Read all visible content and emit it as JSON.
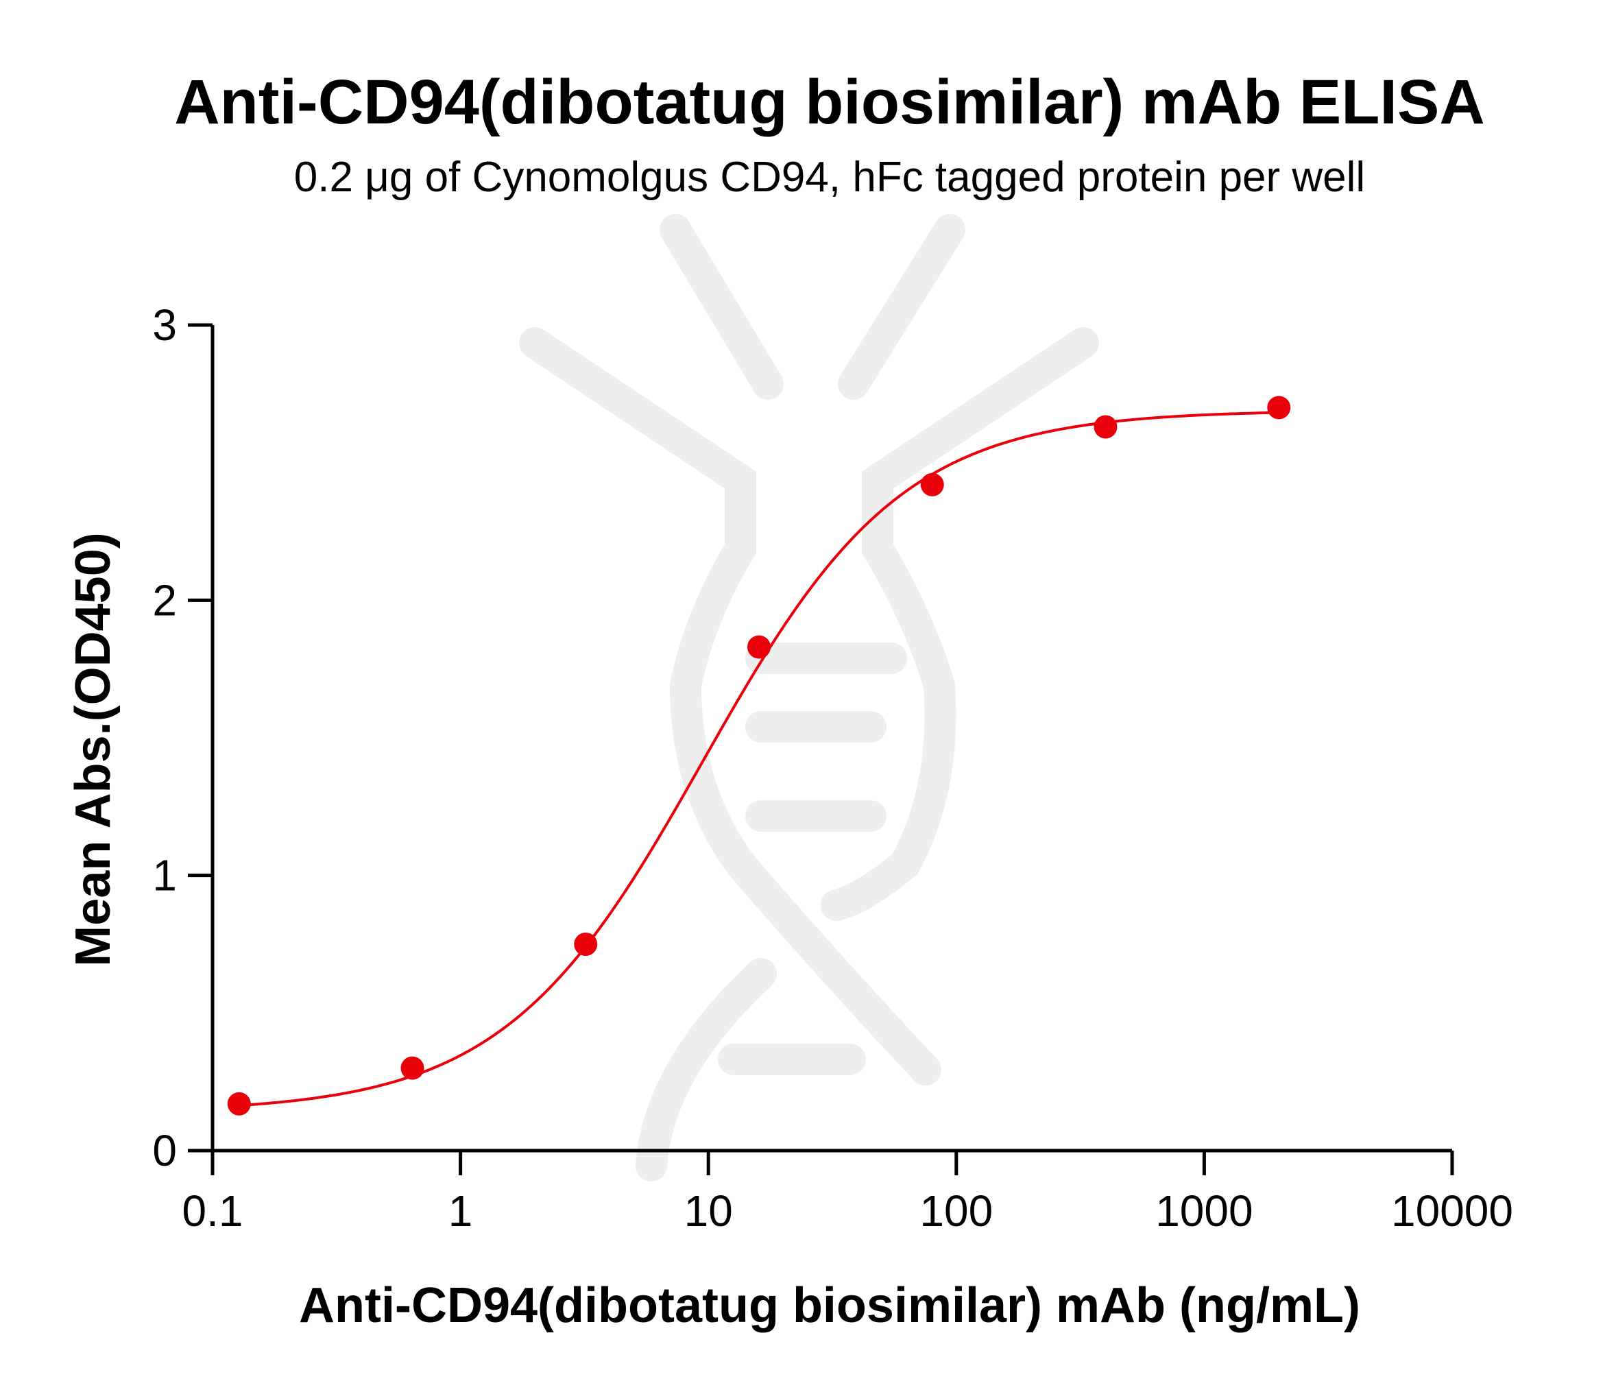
{
  "chart_data": {
    "type": "scatter",
    "title": "Anti-CD94(dibotatug biosimilar) mAb ELISA",
    "subtitle": "0.2 μg of Cynomolgus CD94, hFc tagged protein per well",
    "xlabel": "Anti-CD94(dibotatug biosimilar) mAb (ng/mL)",
    "ylabel": "Mean Abs.(OD450)",
    "x_scale": "log",
    "xlim": [
      0.1,
      10000
    ],
    "ylim": [
      0,
      3
    ],
    "x_ticks": [
      "0.1",
      "1",
      "10",
      "100",
      "1000",
      "10000"
    ],
    "y_ticks": [
      "0",
      "1",
      "2",
      "3"
    ],
    "grid": false,
    "colors": {
      "series": "#e8000b",
      "watermark": "#eeeeee"
    },
    "series": [
      {
        "x": [
          0.128,
          0.64,
          3.2,
          16,
          80,
          400,
          2000
        ],
        "y": [
          0.17,
          0.3,
          0.75,
          1.83,
          2.42,
          2.63,
          2.7
        ],
        "fit": "4PL"
      }
    ]
  }
}
